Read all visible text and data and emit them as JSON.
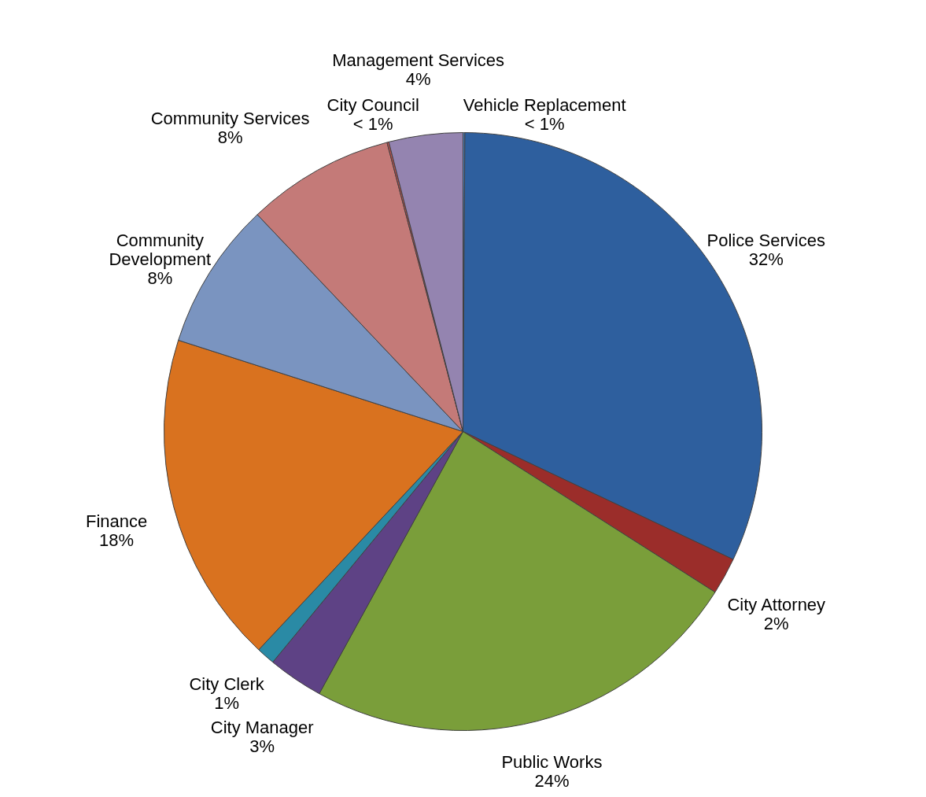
{
  "chart_data": {
    "type": "pie",
    "categories": [
      "Vehicle Replacement",
      "Police Services",
      "City Attorney",
      "Public Works",
      "City Manager",
      "City Clerk",
      "Finance",
      "Community Development",
      "Community Services",
      "City Council",
      "Management Services"
    ],
    "values": [
      0.1,
      32,
      2,
      24,
      3,
      1,
      18,
      8,
      8,
      0.1,
      4
    ],
    "value_labels": [
      "< 1%",
      "32%",
      "2%",
      "24%",
      "3%",
      "1%",
      "18%",
      "8%",
      "8%",
      "< 1%",
      "4%"
    ],
    "colors": [
      "#4f81bd",
      "#2e5f9e",
      "#9b2d2a",
      "#7a9e3a",
      "#5e4285",
      "#2a8aa5",
      "#d9721f",
      "#7a94c0",
      "#c47a78",
      "#c0504d",
      "#9484b0"
    ]
  }
}
